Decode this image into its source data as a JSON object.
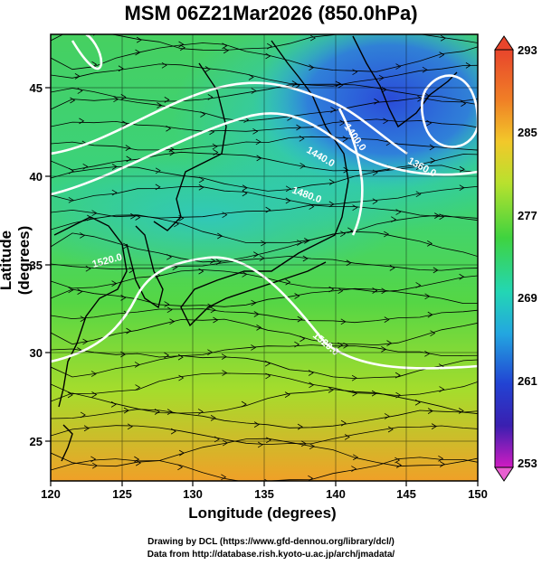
{
  "title": "MSM 06Z21Mar2026 (850.0hPa)",
  "axes": {
    "xlabel": "Longitude (degrees)",
    "ylabel": "Latitude  (degrees)",
    "xticks": [
      "120",
      "125",
      "130",
      "135",
      "140",
      "145",
      "150"
    ],
    "yticks": [
      "25",
      "30",
      "35",
      "40",
      "45"
    ],
    "xlim": [
      120,
      150
    ],
    "ylim": [
      22.4,
      47.6
    ]
  },
  "colorbar": {
    "ticks": [
      "293",
      "285",
      "277",
      "269",
      "261",
      "253"
    ],
    "range": [
      253,
      293
    ]
  },
  "contour_labels": [
    "1400.0",
    "1440.0",
    "1360.0",
    "1480.0",
    "1520.0",
    "1520.0"
  ],
  "credits": {
    "line1": "Drawing by DCL (https://www.gfd-dennou.org/library/dcl/)",
    "line2": "Data from http://database.rish.kyoto-u.ac.jp/arch/jmadata/"
  }
}
